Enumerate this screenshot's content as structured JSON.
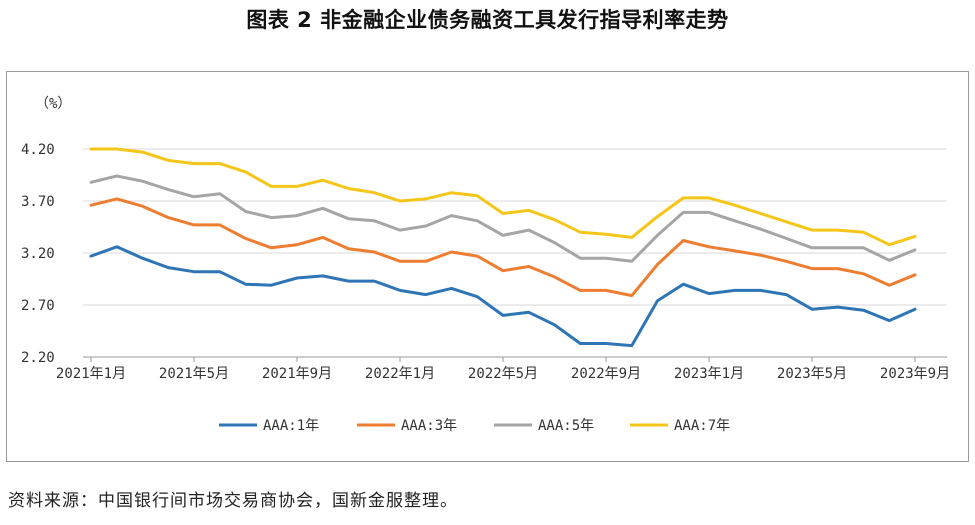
{
  "page": {
    "title": "图表 2 非金融企业债务融资工具发行指导利率走势",
    "source": "资料来源：中国银行间市场交易商协会，国新金服整理。"
  },
  "chart_data": {
    "type": "line",
    "title": "图表 2 非金融企业债务融资工具发行指导利率走势",
    "ylabel": "（%）",
    "xlabel": "",
    "ylim": [
      2.2,
      4.2
    ],
    "yticks": [
      "2.20",
      "2.70",
      "3.20",
      "3.70",
      "4.20"
    ],
    "ytick_values": [
      2.2,
      2.7,
      3.2,
      3.7,
      4.2
    ],
    "x": [
      "2021-01",
      "2021-02",
      "2021-03",
      "2021-04",
      "2021-05",
      "2021-06",
      "2021-07",
      "2021-08",
      "2021-09",
      "2021-10",
      "2021-11",
      "2021-12",
      "2022-01",
      "2022-02",
      "2022-03",
      "2022-04",
      "2022-05",
      "2022-06",
      "2022-07",
      "2022-08",
      "2022-09",
      "2022-10",
      "2022-11",
      "2022-12",
      "2023-01",
      "2023-02",
      "2023-03",
      "2023-04",
      "2023-05",
      "2023-06",
      "2023-07",
      "2023-08",
      "2023-09"
    ],
    "xtick_labels": [
      "2021年1月",
      "2021年5月",
      "2021年9月",
      "2022年1月",
      "2022年5月",
      "2022年9月",
      "2023年1月",
      "2023年5月",
      "2023年9月"
    ],
    "xtick_index": [
      0,
      4,
      8,
      12,
      16,
      20,
      24,
      28,
      32
    ],
    "grid": "horizontal",
    "legend_position": "bottom",
    "series": [
      {
        "name": "AAA:1年",
        "color": "#2e75b6",
        "values": [
          3.17,
          3.26,
          3.15,
          3.06,
          3.02,
          3.02,
          2.9,
          2.89,
          2.96,
          2.98,
          2.93,
          2.93,
          2.84,
          2.8,
          2.86,
          2.78,
          2.6,
          2.63,
          2.51,
          2.33,
          2.33,
          2.31,
          2.74,
          2.9,
          2.81,
          2.84,
          2.84,
          2.8,
          2.66,
          2.68,
          2.65,
          2.55,
          2.66
        ]
      },
      {
        "name": "AAA:3年",
        "color": "#ed7d31",
        "values": [
          3.66,
          3.72,
          3.65,
          3.54,
          3.47,
          3.47,
          3.34,
          3.25,
          3.28,
          3.35,
          3.24,
          3.21,
          3.12,
          3.12,
          3.21,
          3.17,
          3.03,
          3.07,
          2.97,
          2.84,
          2.84,
          2.79,
          3.09,
          3.32,
          3.26,
          3.22,
          3.18,
          3.12,
          3.05,
          3.05,
          3.0,
          2.89,
          2.99
        ]
      },
      {
        "name": "AAA:5年",
        "color": "#a5a5a5",
        "values": [
          3.88,
          3.94,
          3.89,
          3.81,
          3.74,
          3.77,
          3.6,
          3.54,
          3.56,
          3.63,
          3.53,
          3.51,
          3.42,
          3.46,
          3.56,
          3.51,
          3.37,
          3.42,
          3.3,
          3.15,
          3.15,
          3.12,
          3.37,
          3.59,
          3.59,
          3.51,
          3.43,
          3.34,
          3.25,
          3.25,
          3.25,
          3.13,
          3.23
        ]
      },
      {
        "name": "AAA:7年",
        "color": "#f5c518",
        "values": [
          4.2,
          4.2,
          4.17,
          4.09,
          4.06,
          4.06,
          3.98,
          3.84,
          3.84,
          3.9,
          3.82,
          3.78,
          3.7,
          3.72,
          3.78,
          3.75,
          3.58,
          3.61,
          3.52,
          3.4,
          3.38,
          3.35,
          3.55,
          3.73,
          3.73,
          3.66,
          3.58,
          3.5,
          3.42,
          3.42,
          3.4,
          3.28,
          3.36
        ]
      }
    ]
  }
}
